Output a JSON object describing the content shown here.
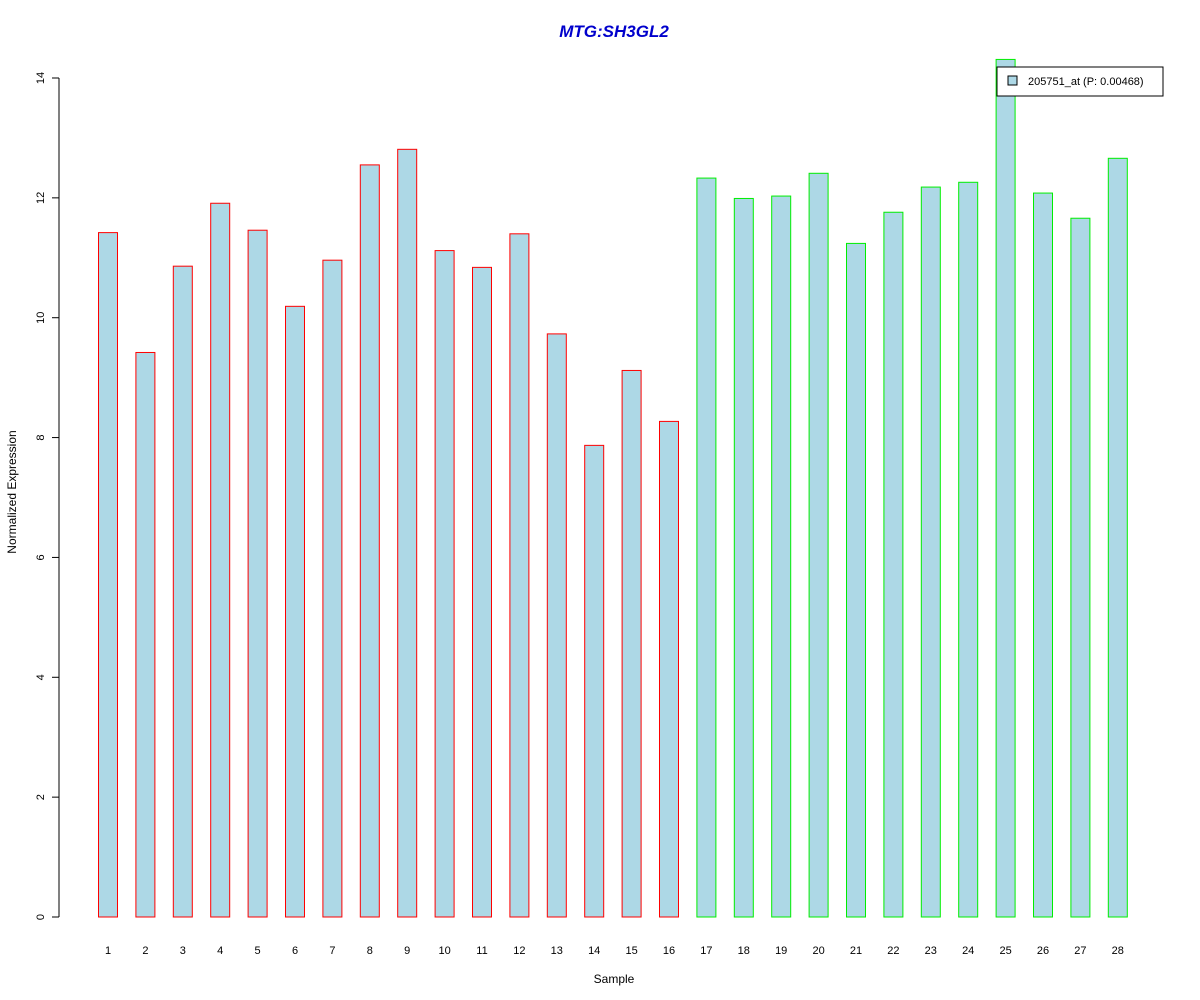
{
  "chart_data": {
    "type": "bar",
    "title": "MTG:SH3GL2",
    "xlabel": "Sample",
    "ylabel": "Normalized Expression",
    "ylim": [
      0,
      14
    ],
    "yticks": [
      "0",
      "2",
      "4",
      "6",
      "8",
      "10",
      "12",
      "14"
    ],
    "categories": [
      "1",
      "2",
      "3",
      "4",
      "5",
      "6",
      "7",
      "8",
      "9",
      "10",
      "11",
      "12",
      "13",
      "14",
      "15",
      "16",
      "17",
      "18",
      "19",
      "20",
      "21",
      "22",
      "23",
      "24",
      "25",
      "26",
      "27",
      "28"
    ],
    "values": [
      11.42,
      9.42,
      10.86,
      11.91,
      11.46,
      10.19,
      10.96,
      12.55,
      12.81,
      11.12,
      10.84,
      11.4,
      9.73,
      7.87,
      9.12,
      8.27,
      12.33,
      11.99,
      12.03,
      12.41,
      11.24,
      11.76,
      12.18,
      12.26,
      14.31,
      12.08,
      11.66,
      12.66
    ],
    "groups": [
      {
        "from": 1,
        "to": 16,
        "border_color": "#ff0000"
      },
      {
        "from": 17,
        "to": 28,
        "border_color": "#00ee00"
      }
    ],
    "bar_fill": "#add8e6",
    "title_color": "#0000cc",
    "grid": false,
    "legend": {
      "placement": "top-right",
      "entries": [
        {
          "label": "205751_at (P: 0.00468)",
          "color": "#add8e6"
        }
      ]
    }
  }
}
